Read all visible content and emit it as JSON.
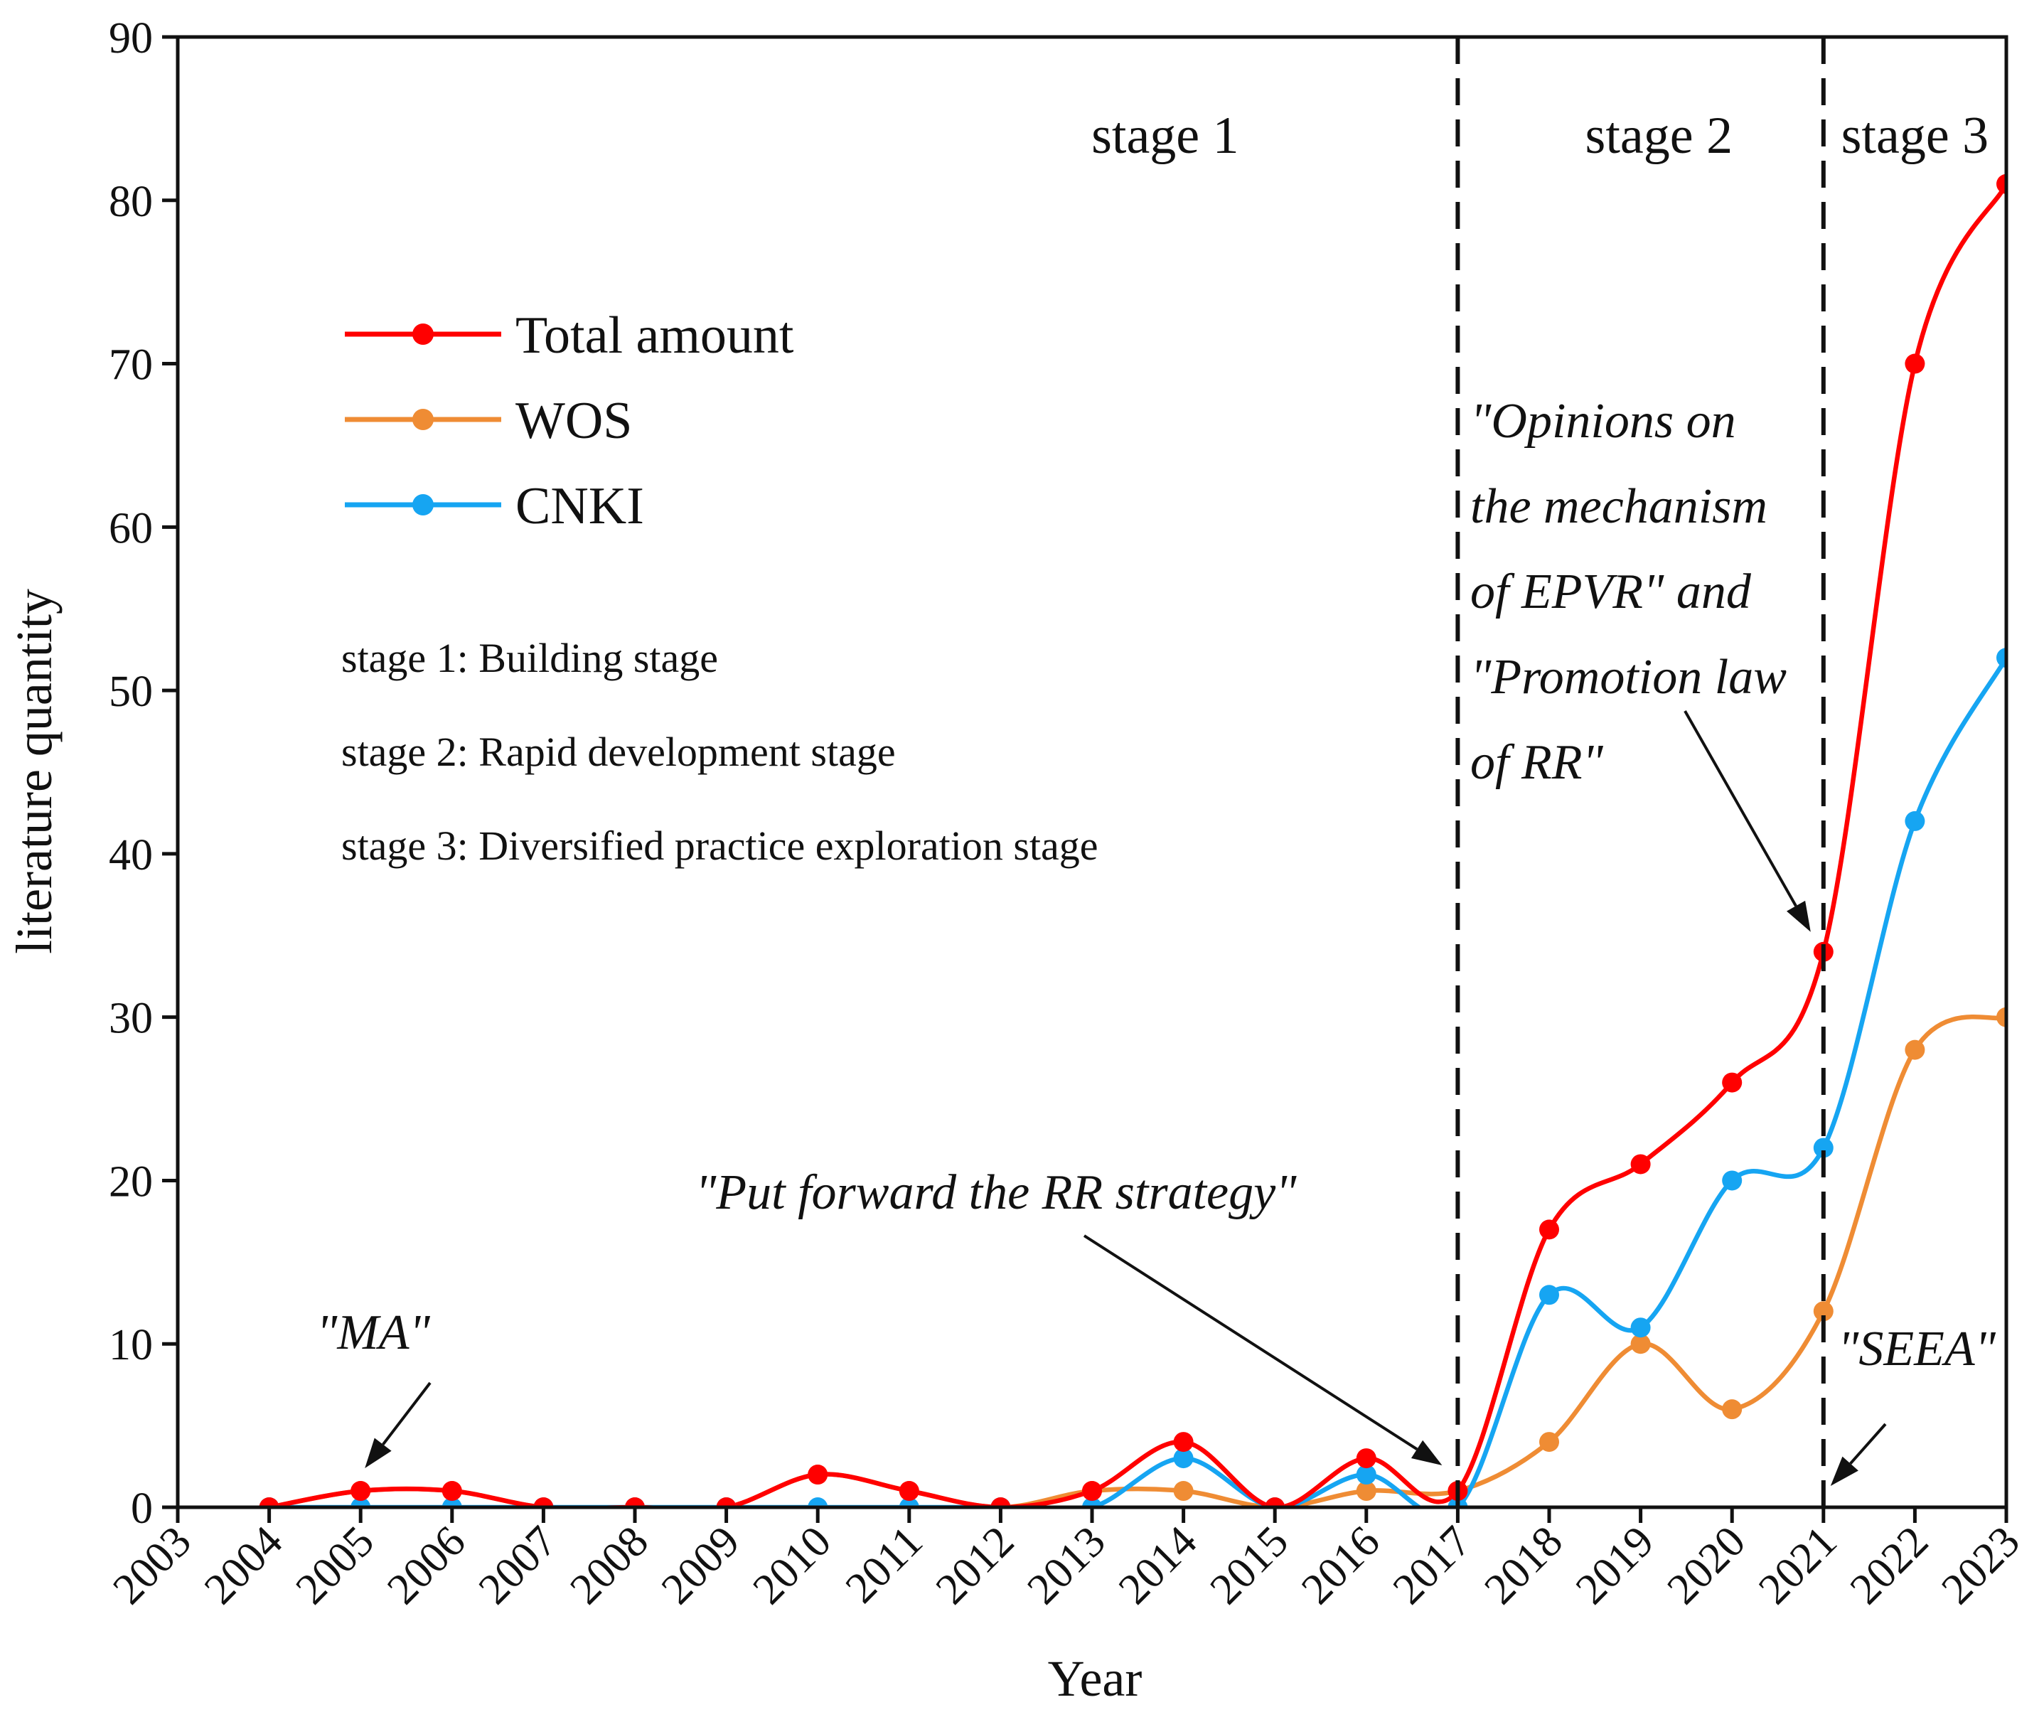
{
  "chart_data": {
    "type": "line",
    "xlabel": "Year",
    "ylabel": "literature quantity",
    "x": [
      2003,
      2004,
      2005,
      2006,
      2007,
      2008,
      2009,
      2010,
      2011,
      2012,
      2013,
      2014,
      2015,
      2016,
      2017,
      2018,
      2019,
      2020,
      2021,
      2022,
      2023
    ],
    "xlim": [
      2003,
      2023
    ],
    "ylim": [
      0,
      90
    ],
    "yticks": [
      0,
      10,
      20,
      30,
      40,
      50,
      60,
      70,
      80,
      90
    ],
    "legend_position": "upper-left",
    "series": [
      {
        "name": "Total amount",
        "color": "#ff0000",
        "x": [
          2004,
          2005,
          2006,
          2007,
          2008,
          2009,
          2010,
          2011,
          2012,
          2013,
          2014,
          2015,
          2016,
          2017,
          2018,
          2019,
          2020,
          2021,
          2022,
          2023
        ],
        "values": [
          0,
          1,
          1,
          0,
          0,
          0,
          2,
          1,
          0,
          1,
          4,
          0,
          3,
          1,
          17,
          21,
          26,
          34,
          70,
          81
        ]
      },
      {
        "name": "WOS",
        "color": "#ef8c34",
        "x": [
          2004,
          2005,
          2006,
          2007,
          2008,
          2009,
          2010,
          2011,
          2012,
          2013,
          2014,
          2015,
          2016,
          2017,
          2018,
          2019,
          2020,
          2021,
          2022,
          2023
        ],
        "values": [
          0,
          1,
          1,
          0,
          0,
          0,
          2,
          1,
          0,
          1,
          1,
          0,
          1,
          1,
          4,
          10,
          6,
          12,
          28,
          30
        ]
      },
      {
        "name": "CNKI",
        "color": "#16a5f2",
        "x": [
          2004,
          2005,
          2006,
          2007,
          2008,
          2009,
          2010,
          2011,
          2012,
          2013,
          2014,
          2015,
          2016,
          2017,
          2018,
          2019,
          2020,
          2021,
          2022,
          2023
        ],
        "values": [
          0,
          0,
          0,
          0,
          0,
          0,
          0,
          0,
          0,
          0,
          3,
          0,
          2,
          0,
          13,
          11,
          20,
          22,
          42,
          52
        ]
      }
    ],
    "stage_dividers": [
      2017,
      2021
    ],
    "stage_labels": [
      {
        "text": "stage 1",
        "x": 2013.8
      },
      {
        "text": "stage 2",
        "x": 2019.2
      },
      {
        "text": "stage 3",
        "x": 2022.0
      }
    ],
    "stage_descriptions": [
      "stage 1: Building stage",
      "stage 2: Rapid development stage",
      "stage 3: Diversified practice exploration stage"
    ],
    "annotations": [
      {
        "lines": [
          "\"MA\""
        ],
        "target": [
          2005,
          1
        ]
      },
      {
        "lines": [
          "\"Put forward the RR strategy\""
        ],
        "target": [
          2017,
          1
        ]
      },
      {
        "lines": [
          "\"Opinions on",
          "the  mechanism",
          "of EPVR\"  and",
          "\"Promotion law",
          "of RR\""
        ],
        "target": [
          2021,
          34
        ]
      },
      {
        "lines": [
          "\"SEEA\""
        ],
        "target": [
          2021,
          0
        ]
      }
    ]
  }
}
